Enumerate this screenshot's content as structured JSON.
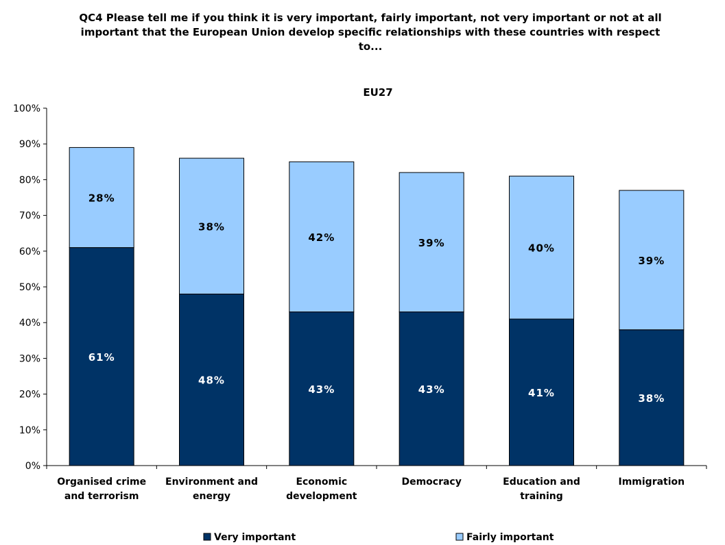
{
  "title": "QC4 Please tell me if you think it is very important, fairly important, not very important or not at all important that the European Union develop specific relationships with these countries with respect to...",
  "chart_data": {
    "type": "bar",
    "stacked": true,
    "subtitle": "EU27",
    "categories": [
      [
        "Organised crime",
        "and terrorism"
      ],
      [
        "Environment and",
        "energy"
      ],
      [
        "Economic",
        "development"
      ],
      [
        "Democracy"
      ],
      [
        "Education and",
        "training"
      ],
      [
        "Immigration"
      ]
    ],
    "series": [
      {
        "name": "Very important",
        "values": [
          61,
          48,
          43,
          43,
          41,
          38
        ],
        "color": "#003366",
        "label_color": "#ffffff"
      },
      {
        "name": "Fairly important",
        "values": [
          28,
          38,
          42,
          39,
          40,
          39
        ],
        "color": "#99ccff",
        "label_color": "#000000"
      }
    ],
    "ylim": [
      0,
      100
    ],
    "yticks": [
      "0%",
      "10%",
      "20%",
      "30%",
      "40%",
      "50%",
      "60%",
      "70%",
      "80%",
      "90%",
      "100%"
    ],
    "value_suffix": "%",
    "grid": false,
    "legend_position": "bottom"
  }
}
